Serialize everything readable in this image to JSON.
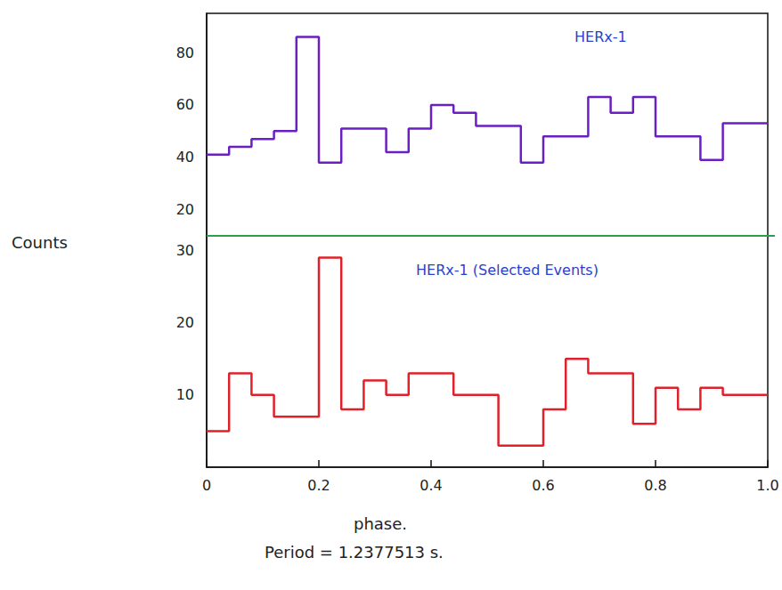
{
  "chart_data": [
    {
      "type": "histogram",
      "title": "HERx-1",
      "ylabel": "Counts",
      "bins": [
        0,
        0.04,
        0.08,
        0.12,
        0.16,
        0.2,
        0.24,
        0.28,
        0.32,
        0.36,
        0.4,
        0.44,
        0.48,
        0.52,
        0.56,
        0.6,
        0.64,
        0.68,
        0.72,
        0.76,
        0.8,
        0.84,
        0.88,
        0.92,
        0.96,
        1.0
      ],
      "values": [
        41,
        44,
        47,
        50,
        86,
        38,
        51,
        51,
        42,
        51,
        60,
        57,
        52,
        52,
        38,
        48,
        48,
        63,
        57,
        63,
        48,
        48,
        39,
        53,
        53
      ],
      "color": "#6a1fc2",
      "xlim": [
        0,
        1
      ],
      "ylim": [
        10,
        95
      ],
      "yticks": [
        20,
        40,
        60,
        80
      ],
      "grid": false,
      "tick_labels": "y"
    },
    {
      "type": "histogram",
      "title": "HERx-1 (Selected Events)",
      "xlabel": "phase.",
      "annotations": [
        "Period = 1.2377513 s."
      ],
      "bins": [
        0,
        0.04,
        0.08,
        0.12,
        0.16,
        0.2,
        0.24,
        0.28,
        0.32,
        0.36,
        0.4,
        0.44,
        0.48,
        0.52,
        0.56,
        0.6,
        0.64,
        0.68,
        0.72,
        0.76,
        0.8,
        0.84,
        0.88,
        0.92,
        0.96,
        1.0
      ],
      "values": [
        5,
        13,
        10,
        7,
        7,
        29,
        8,
        12,
        10,
        13,
        13,
        10,
        10,
        3,
        3,
        8,
        15,
        13,
        13,
        6,
        11,
        8,
        11,
        10,
        10
      ],
      "color": "#e0202a",
      "xlim": [
        0,
        1
      ],
      "xticks": [
        0,
        0.2,
        0.4,
        0.6,
        0.8,
        {
          "value": 1,
          "label": "1.0"
        }
      ],
      "ylim": [
        0,
        32
      ],
      "yticks": [
        10,
        20,
        30
      ],
      "grid": false
    }
  ]
}
